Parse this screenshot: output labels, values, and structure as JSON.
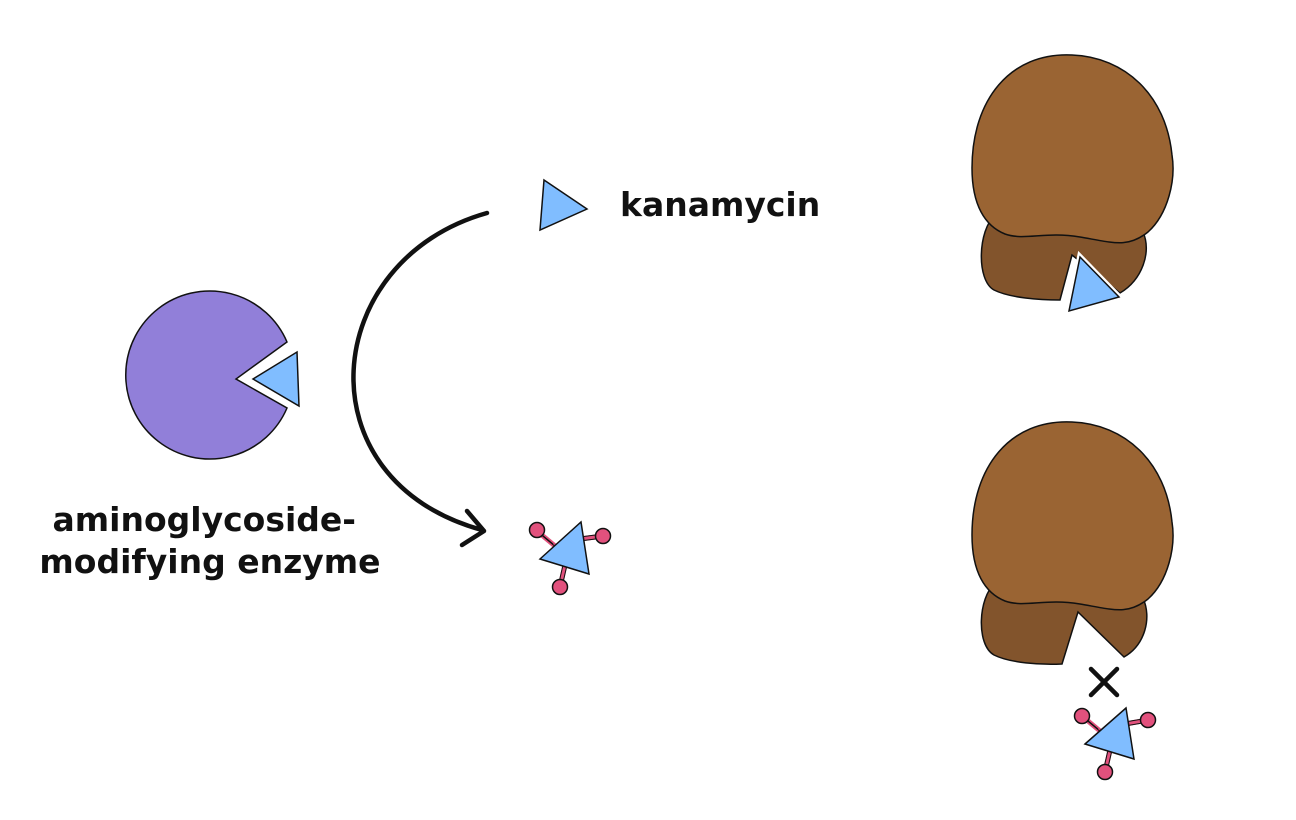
{
  "labels": {
    "enzyme_line1": "aminoglycoside-",
    "enzyme_line2": "modifying enzyme",
    "antibiotic": "kanamycin"
  },
  "colors": {
    "enzyme": "#917fd9",
    "antibiotic": "#80bdff",
    "ribosome_large": "#9a6433",
    "ribosome_small": "#82542c",
    "modification_group": "#e2517d",
    "stroke": "#111111"
  },
  "icons": {
    "blocked_binding": "x-mark-icon",
    "conversion": "curved-arrow-icon"
  }
}
